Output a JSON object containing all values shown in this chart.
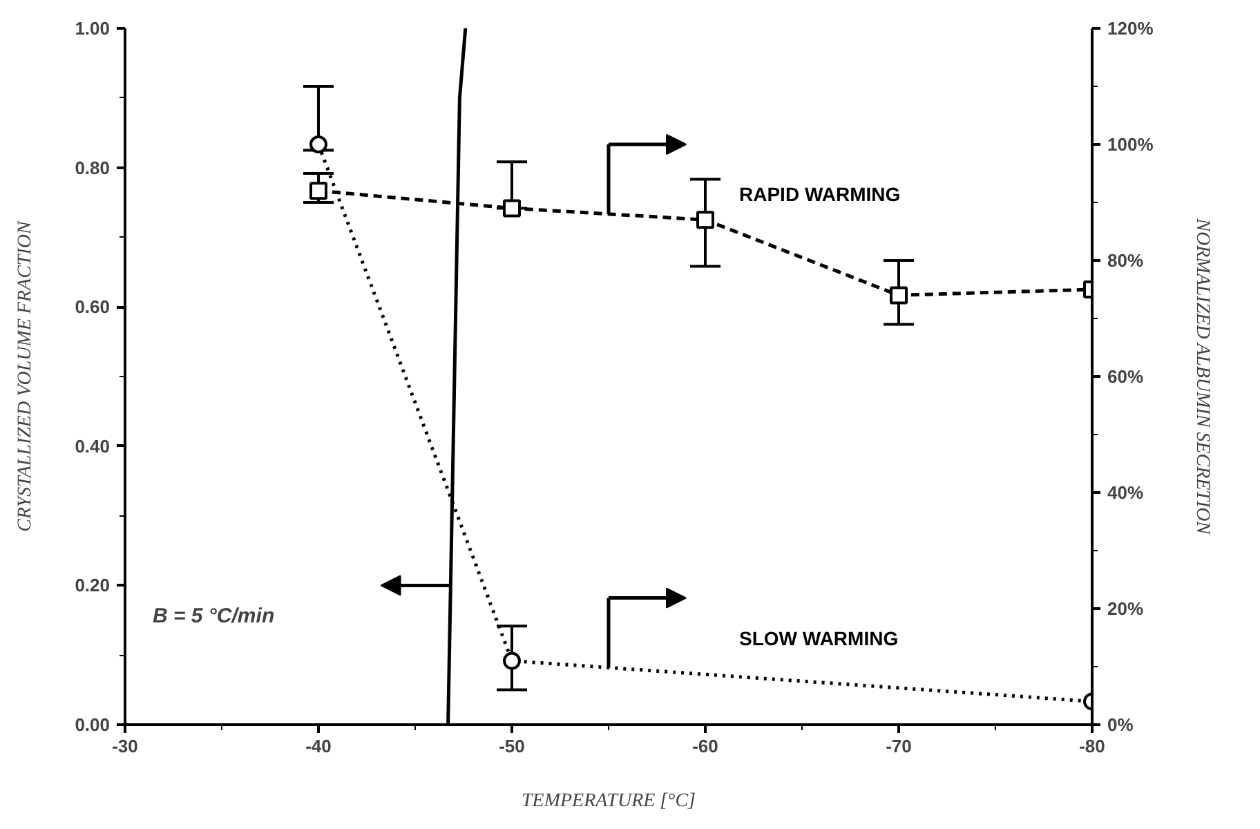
{
  "chart_data": {
    "type": "line",
    "xlabel": "TEMPERATURE [°C]",
    "ylabel": "CRYSTALLIZED VOLUME FRACTION",
    "y2label": "NORMALIZED ALBUMIN SECRETION",
    "xlim": [
      -30,
      -80
    ],
    "xticks": [
      -30,
      -40,
      -50,
      -60,
      -70,
      -80
    ],
    "ylim": [
      0,
      1
    ],
    "yticks": [
      {
        "value": 0,
        "label": "0.00"
      },
      {
        "value": 0.2,
        "label": "0.20"
      },
      {
        "value": 0.4,
        "label": "0.40"
      },
      {
        "value": 0.6,
        "label": "0.60"
      },
      {
        "value": 0.8,
        "label": "0.80"
      },
      {
        "value": 1,
        "label": "1.00"
      }
    ],
    "y2lim": [
      0,
      120
    ],
    "y2ticks": [
      {
        "value": 0,
        "label": "0%"
      },
      {
        "value": 20,
        "label": "20%"
      },
      {
        "value": 40,
        "label": "40%"
      },
      {
        "value": 60,
        "label": "60%"
      },
      {
        "value": 80,
        "label": "80%"
      },
      {
        "value": 100,
        "label": "100%"
      },
      {
        "value": 120,
        "label": "120%"
      }
    ],
    "grid": false,
    "series": [
      {
        "color": "#000000",
        "x": [
          -46.7,
          -46.9,
          -47.1,
          -47.3,
          -47.6
        ],
        "values": [
          0,
          0.3,
          0.6,
          0.9,
          1.0
        ],
        "marker": "none",
        "line_style": "solid"
      },
      {
        "name": "RAPID WARMING",
        "axis": "y2",
        "color": "#000000",
        "x": [
          -40,
          -50,
          -60,
          -70,
          -80
        ],
        "values": [
          92,
          89,
          87,
          74,
          75
        ],
        "errors": [
          [
            90,
            95
          ],
          [
            89,
            97
          ],
          [
            79,
            94
          ],
          [
            69,
            80
          ],
          null
        ],
        "marker": "square",
        "line_style": "dashed"
      },
      {
        "name": "SLOW WARMING",
        "axis": "y2",
        "color": "#000000",
        "x": [
          -40,
          -50,
          -80
        ],
        "values": [
          100,
          11,
          4
        ],
        "errors": [
          [
            99,
            110
          ],
          [
            6,
            17
          ],
          null
        ],
        "marker": "circle",
        "line_style": "dotted"
      }
    ],
    "annotations": [
      "B = 5 °C/min"
    ]
  }
}
